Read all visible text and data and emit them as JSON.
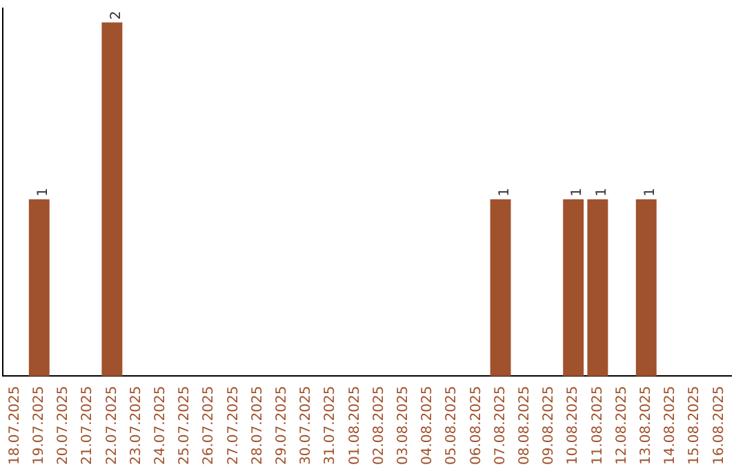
{
  "chart_data": {
    "type": "bar",
    "categories": [
      "18.07.2025",
      "19.07.2025",
      "20.07.2025",
      "21.07.2025",
      "22.07.2025",
      "23.07.2025",
      "24.07.2025",
      "25.07.2025",
      "26.07.2025",
      "27.07.2025",
      "28.07.2025",
      "29.07.2025",
      "30.07.2025",
      "31.07.2025",
      "01.08.2025",
      "02.08.2025",
      "03.08.2025",
      "04.08.2025",
      "05.08.2025",
      "06.08.2025",
      "07.08.2025",
      "08.08.2025",
      "09.08.2025",
      "10.08.2025",
      "11.08.2025",
      "12.08.2025",
      "13.08.2025",
      "14.08.2025",
      "15.08.2025",
      "16.08.2025"
    ],
    "values": [
      0,
      1,
      0,
      0,
      2,
      0,
      0,
      0,
      0,
      0,
      0,
      0,
      0,
      0,
      0,
      0,
      0,
      0,
      0,
      0,
      1,
      0,
      0,
      1,
      1,
      0,
      1,
      0,
      0,
      0
    ],
    "value_labels": [
      null,
      "1",
      null,
      null,
      "2",
      null,
      null,
      null,
      null,
      null,
      null,
      null,
      null,
      null,
      null,
      null,
      null,
      null,
      null,
      null,
      "1",
      null,
      null,
      "1",
      "1",
      null,
      "1",
      null,
      null,
      null
    ],
    "color": "#a0522d",
    "ylim": [
      0,
      2.08
    ],
    "tick_labels": "x",
    "grid": false,
    "legend": false
  }
}
